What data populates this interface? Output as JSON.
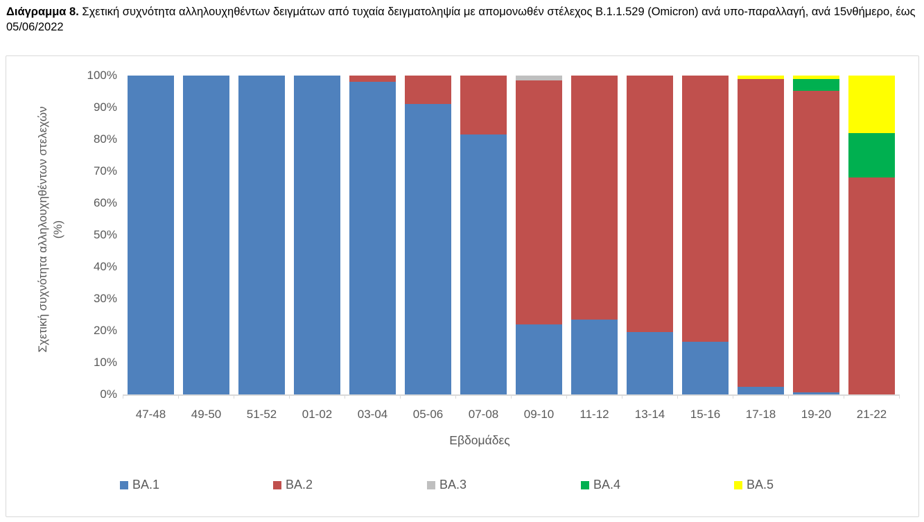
{
  "title": {
    "lead": "Διάγραμμα 8.",
    "rest": " Σχετική συχνότητα αλληλουχηθέντων δειγμάτων από τυχαία δειγματοληψία με απομονωθέν στέλεχος B.1.1.529 (Omicron) ανά υπο-παραλλαγή, ανά 15νθήμερο, έως 05/06/2022"
  },
  "chart_data": {
    "type": "bar",
    "stacked": true,
    "stack_mode": "percent",
    "xlabel": "Εβδομάδες",
    "ylabel": "Σχετική συχνότητα αλληλουχηθέντων στελεχών (%)",
    "ylabel_line1": "Σχετική συχνότητα αλληλουχηθέντων στελεχών",
    "ylabel_line2": "(%)",
    "ylim": [
      0,
      100
    ],
    "ytick_step": 10,
    "yticks": [
      "0%",
      "10%",
      "20%",
      "30%",
      "40%",
      "50%",
      "60%",
      "70%",
      "80%",
      "90%",
      "100%"
    ],
    "grid": false,
    "legend_position": "bottom",
    "categories": [
      "47-48",
      "49-50",
      "51-52",
      "01-02",
      "03-04",
      "05-06",
      "07-08",
      "09-10",
      "11-12",
      "13-14",
      "15-16",
      "17-18",
      "19-20",
      "21-22"
    ],
    "series": [
      {
        "name": "BA.1",
        "color": "#4F81BD",
        "values": [
          100,
          100,
          100,
          100,
          98,
          91,
          81.5,
          22,
          23.5,
          19.5,
          16.5,
          2.5,
          0.7,
          0
        ]
      },
      {
        "name": "BA.2",
        "color": "#C0504D",
        "values": [
          0,
          0,
          0,
          0,
          2,
          9,
          18.5,
          76.5,
          76.5,
          80.5,
          83.5,
          96.5,
          94.5,
          68
        ]
      },
      {
        "name": "BA.3",
        "color": "#BFBFBF",
        "values": [
          0,
          0,
          0,
          0,
          0,
          0,
          0,
          1.5,
          0,
          0,
          0,
          0,
          0,
          0
        ]
      },
      {
        "name": "BA.4",
        "color": "#00B050",
        "values": [
          0,
          0,
          0,
          0,
          0,
          0,
          0,
          0,
          0,
          0,
          0,
          0,
          3.8,
          14
        ]
      },
      {
        "name": "BA.5",
        "color": "#FFFF00",
        "values": [
          0,
          0,
          0,
          0,
          0,
          0,
          0,
          0,
          0,
          0,
          0,
          1,
          1,
          18
        ]
      }
    ],
    "colors": {
      "axis_line": "#D9D9D9",
      "tick_text": "#595959",
      "frame_border": "#D9D9D9"
    }
  }
}
